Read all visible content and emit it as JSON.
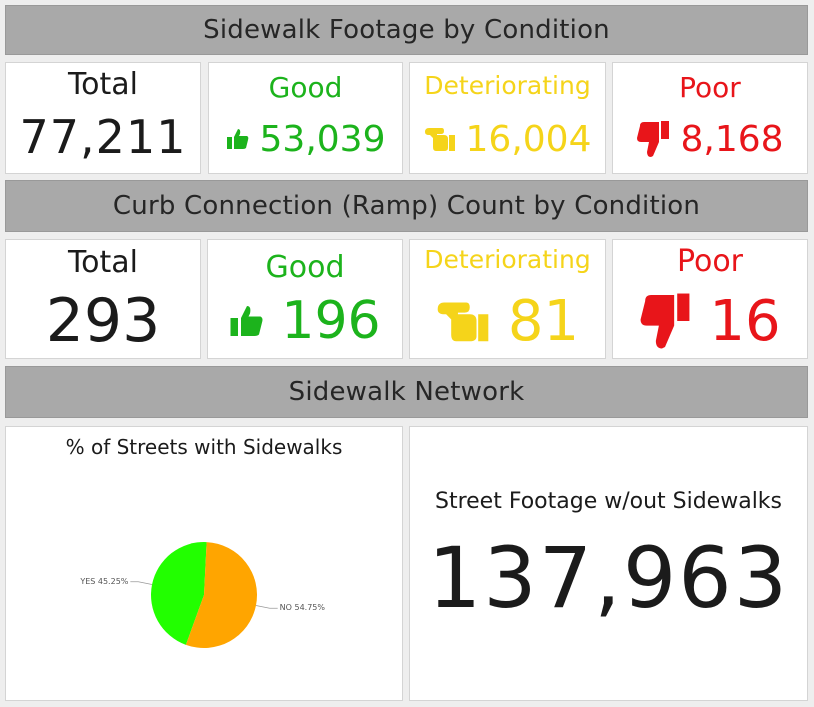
{
  "sections": {
    "sidewalk_footage_title": "Sidewalk Footage by Condition",
    "curb_title": "Curb Connection (Ramp) Count by Condition",
    "network_title": "Sidewalk Network"
  },
  "footage": {
    "total_label": "Total",
    "total_value": "77,211",
    "good_label": "Good",
    "good_value": "53,039",
    "det_label": "Deteriorating",
    "det_value": "16,004",
    "poor_label": "Poor",
    "poor_value": "8,168"
  },
  "curb": {
    "total_label": "Total",
    "total_value": "293",
    "good_label": "Good",
    "good_value": "196",
    "det_label": "Deteriorating",
    "det_value": "81",
    "poor_label": "Poor",
    "poor_value": "16"
  },
  "network": {
    "pie_title": "% of Streets with Sidewalks",
    "footage_title": "Street Footage w/out Sidewalks",
    "footage_value": "137,963"
  },
  "chart_data": {
    "type": "pie",
    "title": "% of Streets with Sidewalks",
    "slices": [
      {
        "label": "YES",
        "value": 45.25,
        "display": "YES 45.25%",
        "color": "#22ff00"
      },
      {
        "label": "NO",
        "value": 54.75,
        "display": "NO 54.75%",
        "color": "#ffa500"
      }
    ]
  },
  "colors": {
    "good": "#1cb31c",
    "deteriorating": "#f5d41a",
    "poor": "#e8151a",
    "header_bg": "#a9a9a9"
  },
  "icons": {
    "good": "thumbs-up-icon",
    "deteriorating": "fist-thumb-side-icon",
    "poor": "thumbs-down-icon"
  }
}
